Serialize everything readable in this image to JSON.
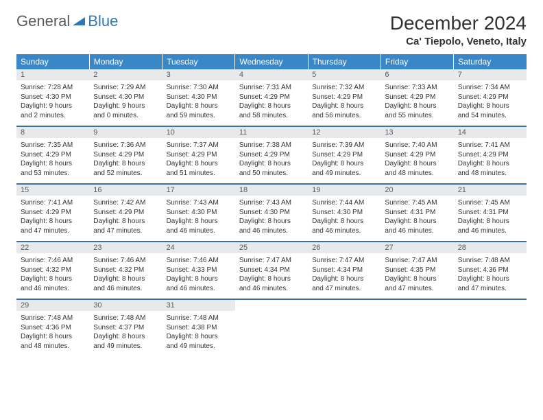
{
  "logo": {
    "text1": "General",
    "text2": "Blue"
  },
  "title": "December 2024",
  "location": "Ca' Tiepolo, Veneto, Italy",
  "colors": {
    "header_bg": "#3a87c8",
    "header_text": "#ffffff",
    "daynum_bg": "#e7e9ea",
    "daynum_text": "#555b60",
    "divider": "#3a6ea5",
    "logo_gray": "#555b60",
    "logo_blue": "#2f78b7"
  },
  "weekdays": [
    "Sunday",
    "Monday",
    "Tuesday",
    "Wednesday",
    "Thursday",
    "Friday",
    "Saturday"
  ],
  "weeks": [
    [
      {
        "n": "1",
        "sunrise": "Sunrise: 7:28 AM",
        "sunset": "Sunset: 4:30 PM",
        "daylight": "Daylight: 9 hours and 2 minutes."
      },
      {
        "n": "2",
        "sunrise": "Sunrise: 7:29 AM",
        "sunset": "Sunset: 4:30 PM",
        "daylight": "Daylight: 9 hours and 0 minutes."
      },
      {
        "n": "3",
        "sunrise": "Sunrise: 7:30 AM",
        "sunset": "Sunset: 4:30 PM",
        "daylight": "Daylight: 8 hours and 59 minutes."
      },
      {
        "n": "4",
        "sunrise": "Sunrise: 7:31 AM",
        "sunset": "Sunset: 4:29 PM",
        "daylight": "Daylight: 8 hours and 58 minutes."
      },
      {
        "n": "5",
        "sunrise": "Sunrise: 7:32 AM",
        "sunset": "Sunset: 4:29 PM",
        "daylight": "Daylight: 8 hours and 56 minutes."
      },
      {
        "n": "6",
        "sunrise": "Sunrise: 7:33 AM",
        "sunset": "Sunset: 4:29 PM",
        "daylight": "Daylight: 8 hours and 55 minutes."
      },
      {
        "n": "7",
        "sunrise": "Sunrise: 7:34 AM",
        "sunset": "Sunset: 4:29 PM",
        "daylight": "Daylight: 8 hours and 54 minutes."
      }
    ],
    [
      {
        "n": "8",
        "sunrise": "Sunrise: 7:35 AM",
        "sunset": "Sunset: 4:29 PM",
        "daylight": "Daylight: 8 hours and 53 minutes."
      },
      {
        "n": "9",
        "sunrise": "Sunrise: 7:36 AM",
        "sunset": "Sunset: 4:29 PM",
        "daylight": "Daylight: 8 hours and 52 minutes."
      },
      {
        "n": "10",
        "sunrise": "Sunrise: 7:37 AM",
        "sunset": "Sunset: 4:29 PM",
        "daylight": "Daylight: 8 hours and 51 minutes."
      },
      {
        "n": "11",
        "sunrise": "Sunrise: 7:38 AM",
        "sunset": "Sunset: 4:29 PM",
        "daylight": "Daylight: 8 hours and 50 minutes."
      },
      {
        "n": "12",
        "sunrise": "Sunrise: 7:39 AM",
        "sunset": "Sunset: 4:29 PM",
        "daylight": "Daylight: 8 hours and 49 minutes."
      },
      {
        "n": "13",
        "sunrise": "Sunrise: 7:40 AM",
        "sunset": "Sunset: 4:29 PM",
        "daylight": "Daylight: 8 hours and 48 minutes."
      },
      {
        "n": "14",
        "sunrise": "Sunrise: 7:41 AM",
        "sunset": "Sunset: 4:29 PM",
        "daylight": "Daylight: 8 hours and 48 minutes."
      }
    ],
    [
      {
        "n": "15",
        "sunrise": "Sunrise: 7:41 AM",
        "sunset": "Sunset: 4:29 PM",
        "daylight": "Daylight: 8 hours and 47 minutes."
      },
      {
        "n": "16",
        "sunrise": "Sunrise: 7:42 AM",
        "sunset": "Sunset: 4:29 PM",
        "daylight": "Daylight: 8 hours and 47 minutes."
      },
      {
        "n": "17",
        "sunrise": "Sunrise: 7:43 AM",
        "sunset": "Sunset: 4:30 PM",
        "daylight": "Daylight: 8 hours and 46 minutes."
      },
      {
        "n": "18",
        "sunrise": "Sunrise: 7:43 AM",
        "sunset": "Sunset: 4:30 PM",
        "daylight": "Daylight: 8 hours and 46 minutes."
      },
      {
        "n": "19",
        "sunrise": "Sunrise: 7:44 AM",
        "sunset": "Sunset: 4:30 PM",
        "daylight": "Daylight: 8 hours and 46 minutes."
      },
      {
        "n": "20",
        "sunrise": "Sunrise: 7:45 AM",
        "sunset": "Sunset: 4:31 PM",
        "daylight": "Daylight: 8 hours and 46 minutes."
      },
      {
        "n": "21",
        "sunrise": "Sunrise: 7:45 AM",
        "sunset": "Sunset: 4:31 PM",
        "daylight": "Daylight: 8 hours and 46 minutes."
      }
    ],
    [
      {
        "n": "22",
        "sunrise": "Sunrise: 7:46 AM",
        "sunset": "Sunset: 4:32 PM",
        "daylight": "Daylight: 8 hours and 46 minutes."
      },
      {
        "n": "23",
        "sunrise": "Sunrise: 7:46 AM",
        "sunset": "Sunset: 4:32 PM",
        "daylight": "Daylight: 8 hours and 46 minutes."
      },
      {
        "n": "24",
        "sunrise": "Sunrise: 7:46 AM",
        "sunset": "Sunset: 4:33 PM",
        "daylight": "Daylight: 8 hours and 46 minutes."
      },
      {
        "n": "25",
        "sunrise": "Sunrise: 7:47 AM",
        "sunset": "Sunset: 4:34 PM",
        "daylight": "Daylight: 8 hours and 46 minutes."
      },
      {
        "n": "26",
        "sunrise": "Sunrise: 7:47 AM",
        "sunset": "Sunset: 4:34 PM",
        "daylight": "Daylight: 8 hours and 47 minutes."
      },
      {
        "n": "27",
        "sunrise": "Sunrise: 7:47 AM",
        "sunset": "Sunset: 4:35 PM",
        "daylight": "Daylight: 8 hours and 47 minutes."
      },
      {
        "n": "28",
        "sunrise": "Sunrise: 7:48 AM",
        "sunset": "Sunset: 4:36 PM",
        "daylight": "Daylight: 8 hours and 47 minutes."
      }
    ],
    [
      {
        "n": "29",
        "sunrise": "Sunrise: 7:48 AM",
        "sunset": "Sunset: 4:36 PM",
        "daylight": "Daylight: 8 hours and 48 minutes."
      },
      {
        "n": "30",
        "sunrise": "Sunrise: 7:48 AM",
        "sunset": "Sunset: 4:37 PM",
        "daylight": "Daylight: 8 hours and 49 minutes."
      },
      {
        "n": "31",
        "sunrise": "Sunrise: 7:48 AM",
        "sunset": "Sunset: 4:38 PM",
        "daylight": "Daylight: 8 hours and 49 minutes."
      },
      null,
      null,
      null,
      null
    ]
  ]
}
